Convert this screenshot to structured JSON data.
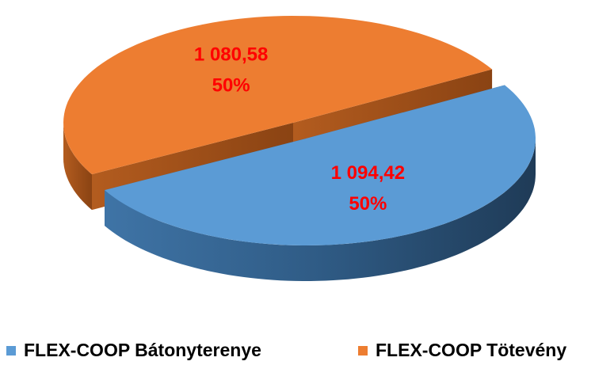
{
  "chart_data": {
    "type": "pie",
    "categories": [
      "FLEX-COOP Bátonyterenye",
      "FLEX-COOP Tötevény"
    ],
    "values": [
      1094.42,
      1080.58
    ],
    "value_labels": [
      "1 094,42",
      "1 080,58"
    ],
    "percent_labels": [
      "50%",
      "50%"
    ],
    "colors": [
      "#5b9bd5",
      "#ed7d31"
    ],
    "label_color": "#ff0000",
    "legend": "bottom"
  }
}
